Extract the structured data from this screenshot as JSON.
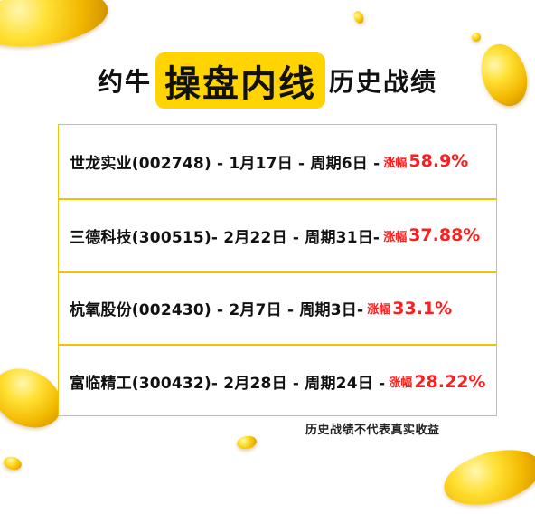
{
  "title": {
    "prefix": "约牛",
    "highlight": "操盘内线",
    "suffix": "历史战绩"
  },
  "records": [
    {
      "text": "世龙实业(002748) - 1月17日 - 周期6日 -",
      "gain_label": "涨幅",
      "gain": "58.9%"
    },
    {
      "text": "三德科技(300515)- 2月22日 - 周期31日-",
      "gain_label": "涨幅",
      "gain": "37.88%"
    },
    {
      "text": "杭氧股份(002430) - 2月7日 - 周期3日-",
      "gain_label": "涨幅",
      "gain": "33.1%"
    },
    {
      "text": "富临精工(300432)- 2月28日 - 周期24日 -",
      "gain_label": "涨幅",
      "gain": "28.22%"
    }
  ],
  "disclaimer": "历史战绩不代表真实收益",
  "colors": {
    "accent": "#ffd400",
    "border": "#f3c400",
    "gain": "#ff1e1e"
  }
}
